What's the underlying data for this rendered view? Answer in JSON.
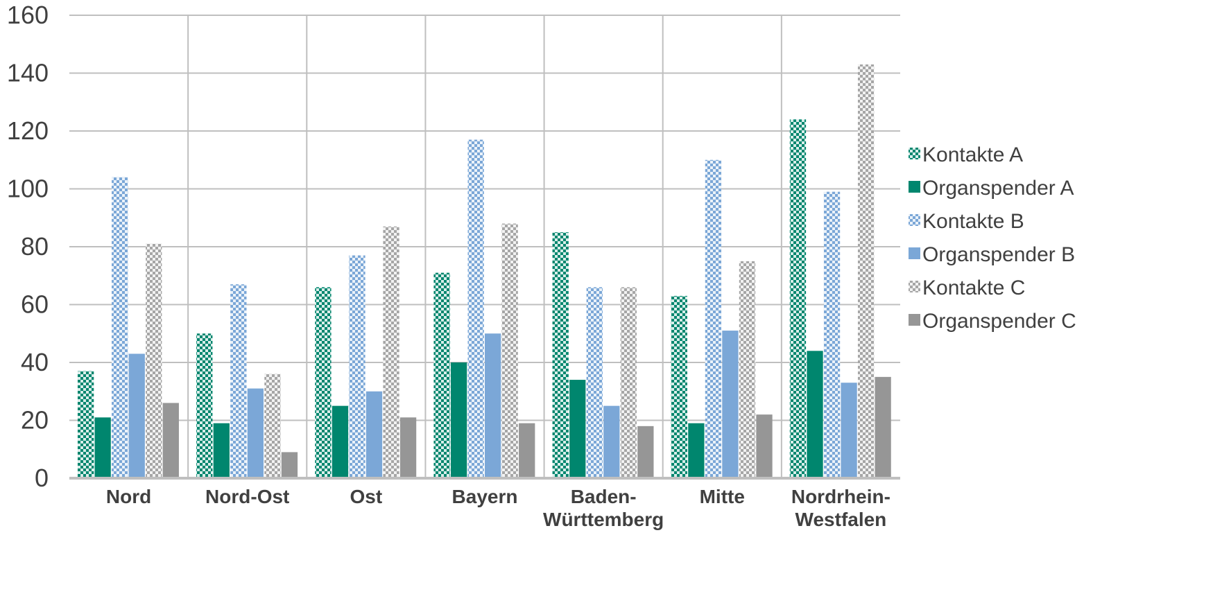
{
  "chart_data": {
    "type": "bar",
    "categories": [
      [
        "Nord"
      ],
      [
        "Nord-Ost"
      ],
      [
        "Ost"
      ],
      [
        "Bayern"
      ],
      [
        "Baden-",
        "Württemberg"
      ],
      [
        "Mitte"
      ],
      [
        "Nordrhein-",
        "Westfalen"
      ]
    ],
    "series": [
      {
        "name": "Kontakte A",
        "color": "#00866E",
        "pattern": "checker",
        "values": [
          37,
          50,
          66,
          71,
          85,
          63,
          124
        ]
      },
      {
        "name": "Organspender A",
        "color": "#00866E",
        "pattern": "solid",
        "values": [
          21,
          19,
          25,
          40,
          34,
          19,
          44
        ]
      },
      {
        "name": "Kontakte B",
        "color": "#7BA7D7",
        "pattern": "checker",
        "values": [
          104,
          67,
          77,
          117,
          66,
          110,
          99
        ]
      },
      {
        "name": "Organspender B",
        "color": "#7BA7D7",
        "pattern": "solid",
        "values": [
          43,
          31,
          30,
          50,
          25,
          51,
          33
        ]
      },
      {
        "name": "Kontakte C",
        "color": "#A6A6A6",
        "pattern": "checker",
        "values": [
          81,
          36,
          87,
          88,
          66,
          75,
          143
        ]
      },
      {
        "name": "Organspender C",
        "color": "#969696",
        "pattern": "solid",
        "values": [
          26,
          9,
          21,
          19,
          18,
          22,
          35
        ]
      }
    ],
    "ylim": [
      0,
      160
    ],
    "yticks": [
      0,
      20,
      40,
      60,
      80,
      100,
      120,
      140,
      160
    ],
    "grid": true,
    "legend": "right",
    "title": "",
    "xlabel": "",
    "ylabel": ""
  }
}
